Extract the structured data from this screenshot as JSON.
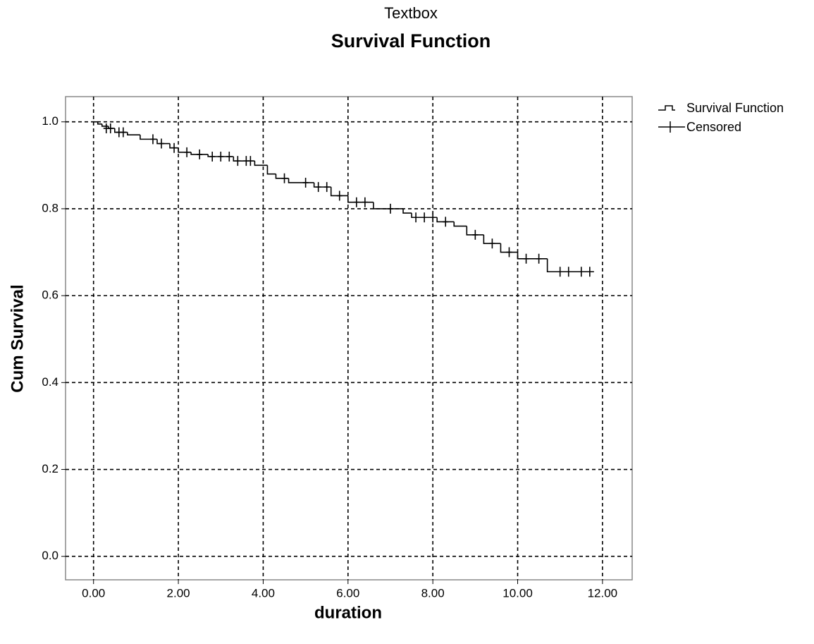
{
  "chart_data": {
    "type": "step",
    "title": "Textbox",
    "subtitle": "Survival Function",
    "x_label": "duration",
    "y_label": "Cum Survival",
    "xlim": [
      -0.66,
      12.7
    ],
    "ylim": [
      -0.054,
      1.058
    ],
    "xticks": [
      {
        "value": 0,
        "label": "0.00"
      },
      {
        "value": 2,
        "label": "2.00"
      },
      {
        "value": 4,
        "label": "4.00"
      },
      {
        "value": 6,
        "label": "6.00"
      },
      {
        "value": 8,
        "label": "8.00"
      },
      {
        "value": 10,
        "label": "10.00"
      },
      {
        "value": 12,
        "label": "12.00"
      }
    ],
    "yticks": [
      {
        "value": 0,
        "label": "0.0"
      },
      0.2,
      0.4,
      0.6,
      0.8,
      {
        "value": 1,
        "label": "1.0"
      }
    ],
    "grid": true,
    "legend": "outside-top-right",
    "series": [
      {
        "name": "Survival Function",
        "color": "#000000",
        "x": [
          0,
          0.1,
          0.2,
          0.35,
          0.5,
          0.8,
          1.1,
          1.5,
          1.8,
          2.0,
          2.3,
          2.7,
          3.3,
          3.8,
          4.1,
          4.3,
          4.6,
          5.2,
          5.6,
          6.0,
          6.6,
          7.3,
          7.5,
          8.1,
          8.5,
          8.8,
          9.2,
          9.6,
          10.0,
          10.7,
          11.8
        ],
        "values": [
          1.0,
          0.995,
          0.99,
          0.985,
          0.976,
          0.97,
          0.96,
          0.95,
          0.94,
          0.93,
          0.925,
          0.92,
          0.91,
          0.9,
          0.88,
          0.87,
          0.86,
          0.85,
          0.83,
          0.815,
          0.8,
          0.79,
          0.78,
          0.77,
          0.76,
          0.74,
          0.72,
          0.7,
          0.685,
          0.655,
          0.655
        ]
      },
      {
        "name": "Censored",
        "color": "#000000",
        "x": [
          0.3,
          0.4,
          0.6,
          0.7,
          1.4,
          1.6,
          1.9,
          2.2,
          2.5,
          2.8,
          3.0,
          3.2,
          3.4,
          3.6,
          3.7,
          4.5,
          5.0,
          5.3,
          5.5,
          5.8,
          6.2,
          6.4,
          7.0,
          7.6,
          7.8,
          8.0,
          8.3,
          9.0,
          9.4,
          9.8,
          10.2,
          10.5,
          11.0,
          11.2,
          11.5,
          11.7
        ],
        "values": [
          0.985,
          0.985,
          0.976,
          0.976,
          0.96,
          0.95,
          0.94,
          0.93,
          0.925,
          0.92,
          0.92,
          0.92,
          0.91,
          0.91,
          0.91,
          0.87,
          0.86,
          0.85,
          0.85,
          0.83,
          0.815,
          0.815,
          0.8,
          0.78,
          0.78,
          0.78,
          0.77,
          0.74,
          0.72,
          0.7,
          0.685,
          0.685,
          0.655,
          0.655,
          0.655,
          0.655
        ]
      }
    ]
  }
}
